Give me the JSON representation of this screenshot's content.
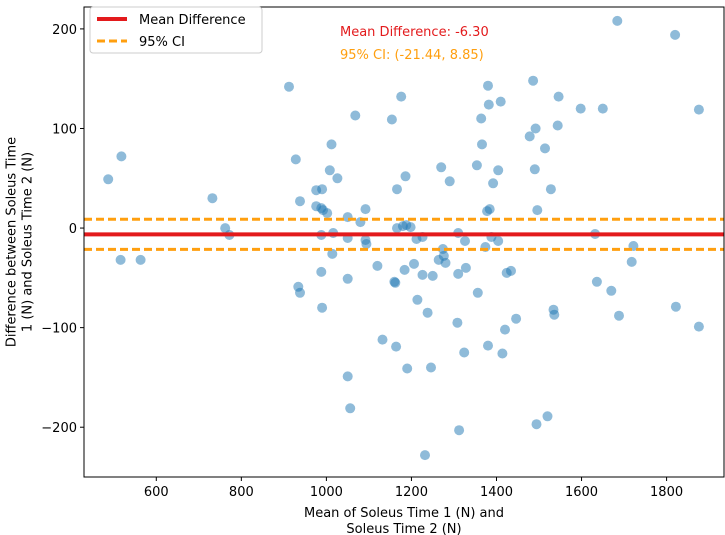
{
  "chart_data": {
    "type": "scatter",
    "xlabel_lines": [
      "Mean of Soleus Time 1 (N) and",
      "Soleus Time 2 (N)"
    ],
    "ylabel_lines": [
      "Difference between Soleus Time",
      "1 (N) and Soleus Time 2 (N)"
    ],
    "xlim": [
      430,
      1935
    ],
    "ylim": [
      -250,
      222
    ],
    "xticks": [
      600,
      800,
      1000,
      1200,
      1400,
      1600,
      1800
    ],
    "xtick_labels": [
      "600",
      "800",
      "1000",
      "1200",
      "1400",
      "1600",
      "1800"
    ],
    "yticks": [
      200,
      100,
      0,
      -100,
      -200
    ],
    "ytick_labels": [
      "200",
      "100",
      "0",
      "−100",
      "−200"
    ],
    "mean_difference": -6.3,
    "ci_lower": -21.44,
    "ci_upper": 8.85,
    "legend": {
      "position": "top-left",
      "entries": [
        "Mean Difference",
        "95% CI"
      ]
    },
    "annotations": {
      "mean_text": "Mean Difference: -6.30",
      "ci_text": "95% CI: (-21.44, 8.85)"
    },
    "colors": {
      "points": "#1f77b4",
      "mean_line": "#e31a1c",
      "ci_line": "#ff9f0f"
    },
    "points": [
      {
        "x": 487,
        "y": 49
      },
      {
        "x": 518,
        "y": 72
      },
      {
        "x": 516,
        "y": -32
      },
      {
        "x": 563,
        "y": -32
      },
      {
        "x": 732,
        "y": 30
      },
      {
        "x": 762,
        "y": 0
      },
      {
        "x": 772,
        "y": -7
      },
      {
        "x": 912,
        "y": 142
      },
      {
        "x": 928,
        "y": 69
      },
      {
        "x": 938,
        "y": 27
      },
      {
        "x": 934,
        "y": -59
      },
      {
        "x": 938,
        "y": -65
      },
      {
        "x": 976,
        "y": 38
      },
      {
        "x": 990,
        "y": 39
      },
      {
        "x": 976,
        "y": 22
      },
      {
        "x": 992,
        "y": 18
      },
      {
        "x": 988,
        "y": 20
      },
      {
        "x": 988,
        "y": -7
      },
      {
        "x": 988,
        "y": -44
      },
      {
        "x": 990,
        "y": -80
      },
      {
        "x": 1012,
        "y": 84
      },
      {
        "x": 1008,
        "y": 58
      },
      {
        "x": 1026,
        "y": 50
      },
      {
        "x": 1002,
        "y": 15
      },
      {
        "x": 1014,
        "y": -26
      },
      {
        "x": 1016,
        "y": -5
      },
      {
        "x": 1050,
        "y": 11
      },
      {
        "x": 1050,
        "y": -10
      },
      {
        "x": 1050,
        "y": -51
      },
      {
        "x": 1050,
        "y": -149
      },
      {
        "x": 1056,
        "y": -181
      },
      {
        "x": 1068,
        "y": 113
      },
      {
        "x": 1080,
        "y": 6
      },
      {
        "x": 1092,
        "y": 19
      },
      {
        "x": 1092,
        "y": -12
      },
      {
        "x": 1094,
        "y": -16
      },
      {
        "x": 1120,
        "y": -38
      },
      {
        "x": 1132,
        "y": -112
      },
      {
        "x": 1154,
        "y": 109
      },
      {
        "x": 1160,
        "y": -54
      },
      {
        "x": 1162,
        "y": -55
      },
      {
        "x": 1164,
        "y": -119
      },
      {
        "x": 1166,
        "y": 0
      },
      {
        "x": 1166,
        "y": 39
      },
      {
        "x": 1176,
        "y": 132
      },
      {
        "x": 1186,
        "y": 52
      },
      {
        "x": 1180,
        "y": 2
      },
      {
        "x": 1188,
        "y": 3
      },
      {
        "x": 1198,
        "y": 1
      },
      {
        "x": 1184,
        "y": -42
      },
      {
        "x": 1190,
        "y": -141
      },
      {
        "x": 1206,
        "y": -36
      },
      {
        "x": 1212,
        "y": -11
      },
      {
        "x": 1214,
        "y": -72
      },
      {
        "x": 1226,
        "y": -47
      },
      {
        "x": 1226,
        "y": -9
      },
      {
        "x": 1238,
        "y": -85
      },
      {
        "x": 1232,
        "y": -228
      },
      {
        "x": 1246,
        "y": -140
      },
      {
        "x": 1250,
        "y": -48
      },
      {
        "x": 1270,
        "y": 61
      },
      {
        "x": 1264,
        "y": -32
      },
      {
        "x": 1274,
        "y": -21
      },
      {
        "x": 1276,
        "y": -28
      },
      {
        "x": 1280,
        "y": -35
      },
      {
        "x": 1290,
        "y": 47
      },
      {
        "x": 1308,
        "y": -95
      },
      {
        "x": 1310,
        "y": -5
      },
      {
        "x": 1310,
        "y": -46
      },
      {
        "x": 1312,
        "y": -203
      },
      {
        "x": 1324,
        "y": -125
      },
      {
        "x": 1328,
        "y": -40
      },
      {
        "x": 1326,
        "y": -13
      },
      {
        "x": 1354,
        "y": 63
      },
      {
        "x": 1356,
        "y": -65
      },
      {
        "x": 1364,
        "y": 110
      },
      {
        "x": 1366,
        "y": 84
      },
      {
        "x": 1374,
        "y": -19
      },
      {
        "x": 1378,
        "y": 17
      },
      {
        "x": 1380,
        "y": 143
      },
      {
        "x": 1382,
        "y": 124
      },
      {
        "x": 1384,
        "y": 19
      },
      {
        "x": 1380,
        "y": -118
      },
      {
        "x": 1392,
        "y": 45
      },
      {
        "x": 1388,
        "y": -9
      },
      {
        "x": 1404,
        "y": 58
      },
      {
        "x": 1404,
        "y": -13
      },
      {
        "x": 1410,
        "y": 127
      },
      {
        "x": 1414,
        "y": -126
      },
      {
        "x": 1420,
        "y": -102
      },
      {
        "x": 1424,
        "y": -45
      },
      {
        "x": 1434,
        "y": -43
      },
      {
        "x": 1446,
        "y": -91
      },
      {
        "x": 1478,
        "y": 92
      },
      {
        "x": 1486,
        "y": 148
      },
      {
        "x": 1492,
        "y": 100
      },
      {
        "x": 1490,
        "y": 59
      },
      {
        "x": 1496,
        "y": 18
      },
      {
        "x": 1494,
        "y": -197
      },
      {
        "x": 1514,
        "y": 80
      },
      {
        "x": 1520,
        "y": -189
      },
      {
        "x": 1528,
        "y": 39
      },
      {
        "x": 1534,
        "y": -82
      },
      {
        "x": 1536,
        "y": -87
      },
      {
        "x": 1544,
        "y": 103
      },
      {
        "x": 1546,
        "y": 132
      },
      {
        "x": 1598,
        "y": 120
      },
      {
        "x": 1632,
        "y": -6
      },
      {
        "x": 1636,
        "y": -54
      },
      {
        "x": 1650,
        "y": 120
      },
      {
        "x": 1670,
        "y": -63
      },
      {
        "x": 1684,
        "y": 208
      },
      {
        "x": 1688,
        "y": -88
      },
      {
        "x": 1718,
        "y": -34
      },
      {
        "x": 1722,
        "y": -18
      },
      {
        "x": 1820,
        "y": 194
      },
      {
        "x": 1822,
        "y": -79
      },
      {
        "x": 1876,
        "y": 119
      },
      {
        "x": 1876,
        "y": -99
      }
    ]
  }
}
